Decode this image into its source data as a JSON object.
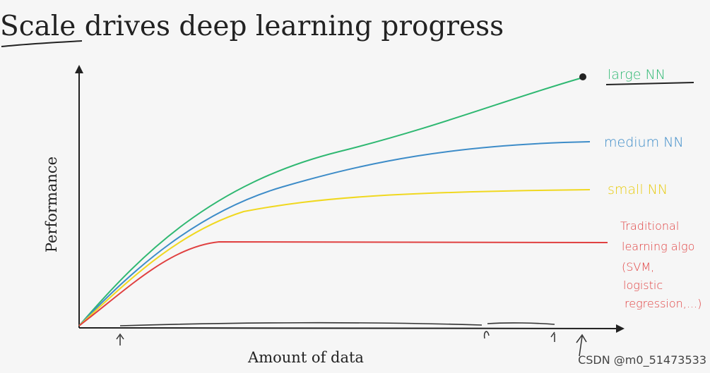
{
  "header": {
    "title": "Scale drives deep learning progress"
  },
  "axes": {
    "y_label": "Performance",
    "x_label": "Amount of data"
  },
  "curves": [
    {
      "label": "large NN"
    },
    {
      "label": "medium NN"
    },
    {
      "label": "small NN"
    },
    {
      "label_lines": [
        "Traditional",
        "learning algo",
        "(SVM,",
        "logistic",
        "regression,...)"
      ]
    }
  ],
  "watermark": "CSDN @m0_51473533"
}
